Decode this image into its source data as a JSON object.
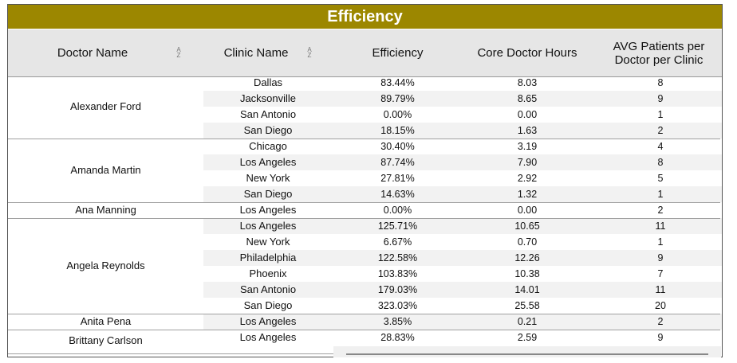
{
  "title": "Efficiency",
  "columns": {
    "doctor": "Doctor Name",
    "clinic": "Clinic Name",
    "efficiency": "Efficiency",
    "core_hours": "Core Doctor Hours",
    "avg_patients": "AVG Patients per Doctor per Clinic",
    "sort_glyph_top": "A",
    "sort_glyph_bottom": "Z"
  },
  "rows": [
    {
      "clinic": "Dallas",
      "efficiency": "83.44%",
      "hours": "8.03",
      "avg": "8"
    },
    {
      "clinic": "Jacksonville",
      "efficiency": "89.79%",
      "hours": "8.65",
      "avg": "9"
    },
    {
      "clinic": "San Antonio",
      "efficiency": "0.00%",
      "hours": "0.00",
      "avg": "1"
    },
    {
      "clinic": "San Diego",
      "efficiency": "18.15%",
      "hours": "1.63",
      "avg": "2"
    },
    {
      "clinic": "Chicago",
      "efficiency": "30.40%",
      "hours": "3.19",
      "avg": "4"
    },
    {
      "clinic": "Los Angeles",
      "efficiency": "87.74%",
      "hours": "7.90",
      "avg": "8"
    },
    {
      "clinic": "New York",
      "efficiency": "27.81%",
      "hours": "2.92",
      "avg": "5"
    },
    {
      "clinic": "San Diego",
      "efficiency": "14.63%",
      "hours": "1.32",
      "avg": "1"
    },
    {
      "clinic": "Los Angeles",
      "efficiency": "0.00%",
      "hours": "0.00",
      "avg": "2"
    },
    {
      "clinic": "Los Angeles",
      "efficiency": "125.71%",
      "hours": "10.65",
      "avg": "11"
    },
    {
      "clinic": "New York",
      "efficiency": "6.67%",
      "hours": "0.70",
      "avg": "1"
    },
    {
      "clinic": "Philadelphia",
      "efficiency": "122.58%",
      "hours": "12.26",
      "avg": "9"
    },
    {
      "clinic": "Phoenix",
      "efficiency": "103.83%",
      "hours": "10.38",
      "avg": "7"
    },
    {
      "clinic": "San Antonio",
      "efficiency": "179.03%",
      "hours": "14.01",
      "avg": "11"
    },
    {
      "clinic": "San Diego",
      "efficiency": "323.03%",
      "hours": "25.58",
      "avg": "20"
    },
    {
      "clinic": "Los Angeles",
      "efficiency": "3.85%",
      "hours": "0.21",
      "avg": "2"
    },
    {
      "clinic": "Los Angeles",
      "efficiency": "28.83%",
      "hours": "2.59",
      "avg": "9"
    }
  ],
  "doctors": [
    {
      "name": "Alexander Ford",
      "start": 0,
      "count": 4
    },
    {
      "name": "Amanda Martin",
      "start": 4,
      "count": 4
    },
    {
      "name": "Ana Manning",
      "start": 8,
      "count": 1
    },
    {
      "name": "Angela Reynolds",
      "start": 9,
      "count": 6
    },
    {
      "name": "Anita Pena",
      "start": 15,
      "count": 1
    },
    {
      "name": "Brittany Carlson",
      "start": 16,
      "count": 1
    }
  ],
  "colors": {
    "title_bar": "#9c8700",
    "header_bg": "#e6e6e6",
    "alt_row": "#f2f2f2"
  }
}
